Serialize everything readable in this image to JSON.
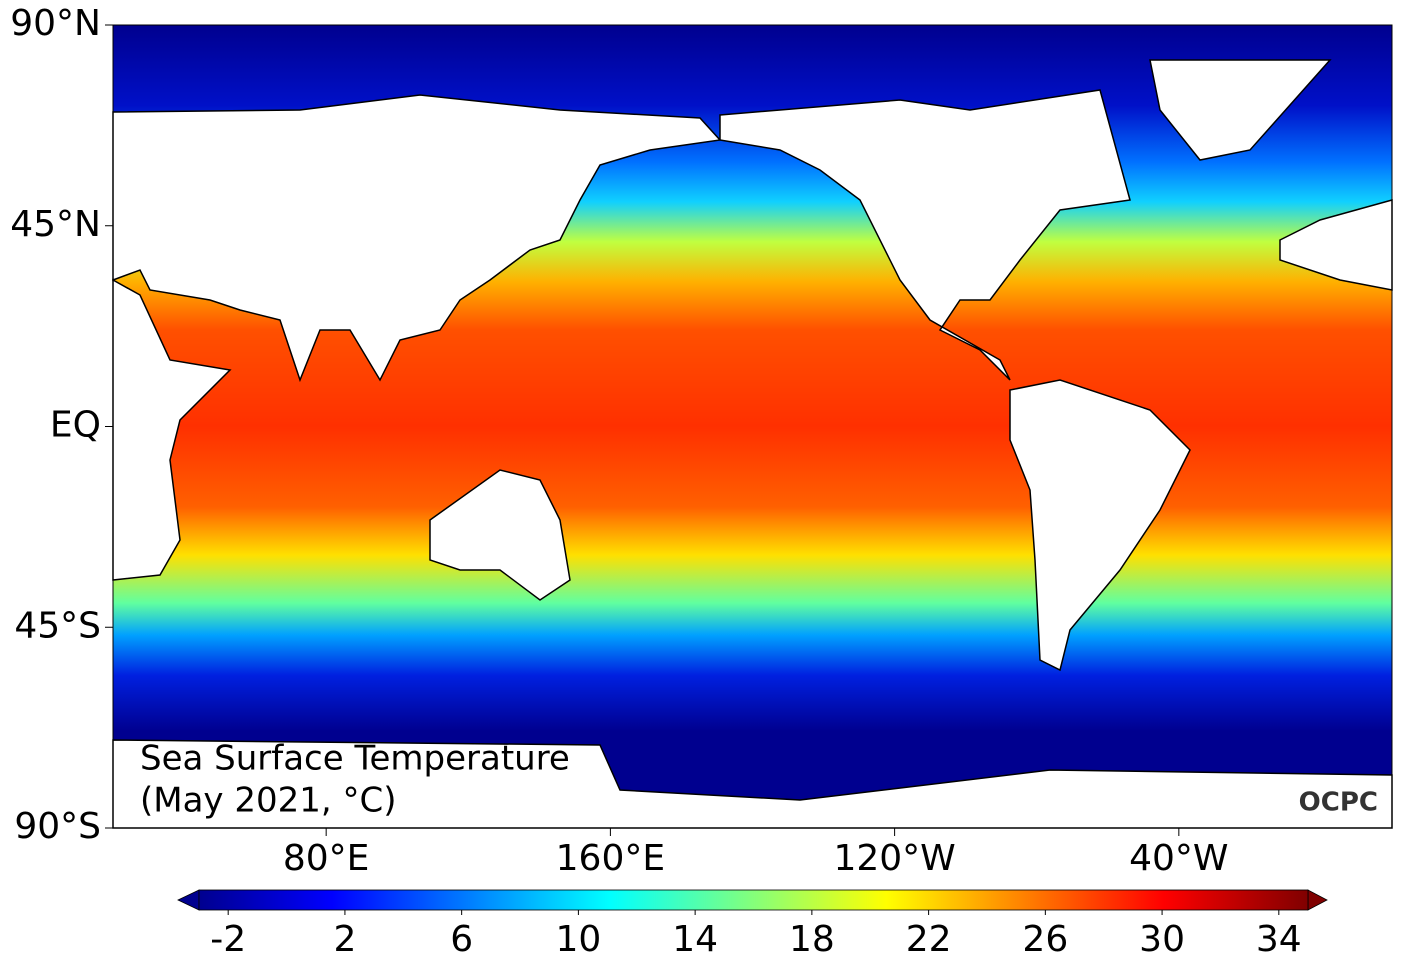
{
  "map": {
    "title": [
      "Sea Surface Temperature",
      "(May 2021, °C)"
    ],
    "logo": "OCPC",
    "xlim": [
      20,
      380
    ],
    "ylim": [
      -90,
      90
    ],
    "lat_ticks": [
      {
        "value": 90,
        "label": "90°N"
      },
      {
        "value": 45,
        "label": "45°N"
      },
      {
        "value": 0,
        "label": "EQ"
      },
      {
        "value": -45,
        "label": "45°S"
      },
      {
        "value": -90,
        "label": "90°S"
      }
    ],
    "lon_ticks": [
      {
        "value": 80,
        "label": "80°E"
      },
      {
        "value": 160,
        "label": "160°E"
      },
      {
        "value": 240,
        "label": "120°W"
      },
      {
        "value": 320,
        "label": "40°W"
      }
    ]
  },
  "colorbar": {
    "lim": [
      -3,
      35
    ],
    "ticks": [
      -2,
      2,
      6,
      10,
      14,
      18,
      22,
      26,
      30,
      34
    ]
  }
}
